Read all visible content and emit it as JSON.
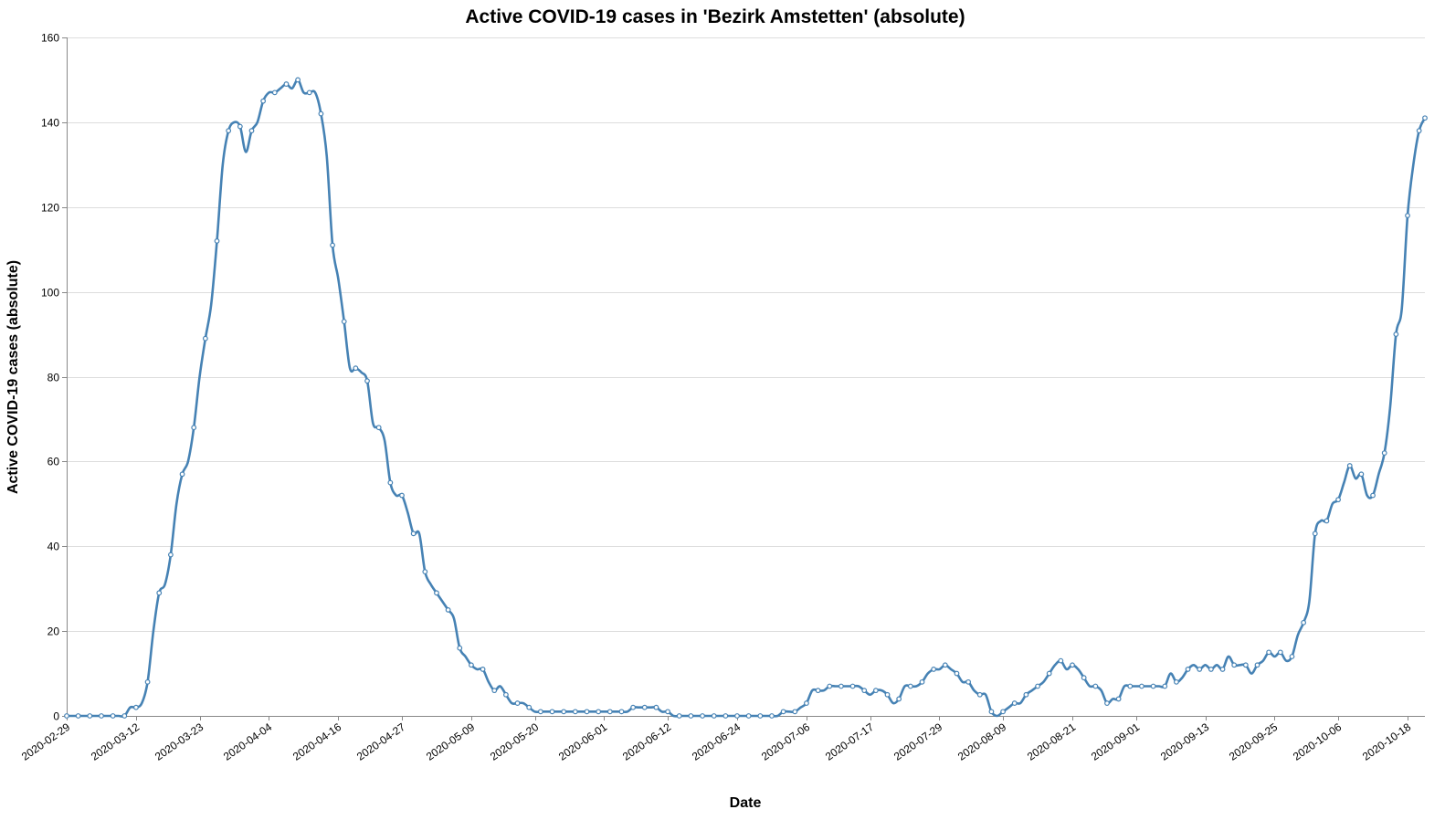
{
  "chart_data": {
    "type": "line",
    "title": "Active COVID-19 cases in 'Bezirk Amstetten' (absolute)",
    "xlabel": "Date",
    "ylabel": "Active COVID-19 cases (absolute)",
    "ylim": [
      0,
      160
    ],
    "yticks": [
      "0",
      "20",
      "40",
      "60",
      "80",
      "100",
      "120",
      "140",
      "160"
    ],
    "xlim": [
      "2020-02-29",
      "2020-10-21"
    ],
    "xticks": [
      "2020-02-29",
      "2020-03-12",
      "2020-03-23",
      "2020-04-04",
      "2020-04-16",
      "2020-04-27",
      "2020-05-09",
      "2020-05-20",
      "2020-06-01",
      "2020-06-12",
      "2020-06-24",
      "2020-07-06",
      "2020-07-17",
      "2020-07-29",
      "2020-08-09",
      "2020-08-21",
      "2020-09-01",
      "2020-09-13",
      "2020-09-25",
      "2020-10-06",
      "2020-10-18"
    ],
    "grid": true,
    "color": "#4682b4",
    "series": [
      {
        "points": [
          [
            "2020-02-29",
            0
          ],
          [
            "2020-03-01",
            0
          ],
          [
            "2020-03-02",
            0
          ],
          [
            "2020-03-03",
            0
          ],
          [
            "2020-03-04",
            0
          ],
          [
            "2020-03-05",
            0
          ],
          [
            "2020-03-06",
            0
          ],
          [
            "2020-03-07",
            0
          ],
          [
            "2020-03-08",
            0
          ],
          [
            "2020-03-09",
            0
          ],
          [
            "2020-03-10",
            0
          ],
          [
            "2020-03-11",
            2
          ],
          [
            "2020-03-12",
            2
          ],
          [
            "2020-03-13",
            3
          ],
          [
            "2020-03-14",
            8
          ],
          [
            "2020-03-15",
            20
          ],
          [
            "2020-03-16",
            29
          ],
          [
            "2020-03-17",
            31
          ],
          [
            "2020-03-18",
            38
          ],
          [
            "2020-03-19",
            50
          ],
          [
            "2020-03-20",
            57
          ],
          [
            "2020-03-21",
            60
          ],
          [
            "2020-03-22",
            68
          ],
          [
            "2020-03-23",
            80
          ],
          [
            "2020-03-24",
            89
          ],
          [
            "2020-03-25",
            97
          ],
          [
            "2020-03-26",
            112
          ],
          [
            "2020-03-27",
            130
          ],
          [
            "2020-03-28",
            138
          ],
          [
            "2020-03-29",
            140
          ],
          [
            "2020-03-30",
            139
          ],
          [
            "2020-03-31",
            133
          ],
          [
            "2020-04-01",
            138
          ],
          [
            "2020-04-02",
            140
          ],
          [
            "2020-04-03",
            145
          ],
          [
            "2020-04-04",
            147
          ],
          [
            "2020-04-05",
            147
          ],
          [
            "2020-04-06",
            148
          ],
          [
            "2020-04-07",
            149
          ],
          [
            "2020-04-08",
            148
          ],
          [
            "2020-04-09",
            150
          ],
          [
            "2020-04-10",
            147
          ],
          [
            "2020-04-11",
            147
          ],
          [
            "2020-04-12",
            147
          ],
          [
            "2020-04-13",
            142
          ],
          [
            "2020-04-14",
            132
          ],
          [
            "2020-04-15",
            111
          ],
          [
            "2020-04-16",
            103
          ],
          [
            "2020-04-17",
            93
          ],
          [
            "2020-04-18",
            82
          ],
          [
            "2020-04-19",
            82
          ],
          [
            "2020-04-20",
            81
          ],
          [
            "2020-04-21",
            79
          ],
          [
            "2020-04-22",
            69
          ],
          [
            "2020-04-23",
            68
          ],
          [
            "2020-04-24",
            65
          ],
          [
            "2020-04-25",
            55
          ],
          [
            "2020-04-26",
            52
          ],
          [
            "2020-04-27",
            52
          ],
          [
            "2020-04-28",
            48
          ],
          [
            "2020-04-29",
            43
          ],
          [
            "2020-04-30",
            43
          ],
          [
            "2020-05-01",
            34
          ],
          [
            "2020-05-02",
            31
          ],
          [
            "2020-05-03",
            29
          ],
          [
            "2020-05-04",
            27
          ],
          [
            "2020-05-05",
            25
          ],
          [
            "2020-05-06",
            23
          ],
          [
            "2020-05-07",
            16
          ],
          [
            "2020-05-08",
            14
          ],
          [
            "2020-05-09",
            12
          ],
          [
            "2020-05-10",
            11
          ],
          [
            "2020-05-11",
            11
          ],
          [
            "2020-05-12",
            8
          ],
          [
            "2020-05-13",
            6
          ],
          [
            "2020-05-14",
            7
          ],
          [
            "2020-05-15",
            5
          ],
          [
            "2020-05-16",
            3
          ],
          [
            "2020-05-17",
            3
          ],
          [
            "2020-05-18",
            3
          ],
          [
            "2020-05-19",
            2
          ],
          [
            "2020-05-20",
            1
          ],
          [
            "2020-05-21",
            1
          ],
          [
            "2020-05-22",
            1
          ],
          [
            "2020-05-23",
            1
          ],
          [
            "2020-05-24",
            1
          ],
          [
            "2020-05-25",
            1
          ],
          [
            "2020-05-26",
            1
          ],
          [
            "2020-05-27",
            1
          ],
          [
            "2020-05-28",
            1
          ],
          [
            "2020-05-29",
            1
          ],
          [
            "2020-05-30",
            1
          ],
          [
            "2020-05-31",
            1
          ],
          [
            "2020-06-01",
            1
          ],
          [
            "2020-06-02",
            1
          ],
          [
            "2020-06-03",
            1
          ],
          [
            "2020-06-04",
            1
          ],
          [
            "2020-06-05",
            1
          ],
          [
            "2020-06-06",
            2
          ],
          [
            "2020-06-07",
            2
          ],
          [
            "2020-06-08",
            2
          ],
          [
            "2020-06-09",
            2
          ],
          [
            "2020-06-10",
            2
          ],
          [
            "2020-06-11",
            1
          ],
          [
            "2020-06-12",
            1
          ],
          [
            "2020-06-13",
            0
          ],
          [
            "2020-06-14",
            0
          ],
          [
            "2020-06-15",
            0
          ],
          [
            "2020-06-16",
            0
          ],
          [
            "2020-06-17",
            0
          ],
          [
            "2020-06-18",
            0
          ],
          [
            "2020-06-19",
            0
          ],
          [
            "2020-06-20",
            0
          ],
          [
            "2020-06-21",
            0
          ],
          [
            "2020-06-22",
            0
          ],
          [
            "2020-06-23",
            0
          ],
          [
            "2020-06-24",
            0
          ],
          [
            "2020-06-25",
            0
          ],
          [
            "2020-06-26",
            0
          ],
          [
            "2020-06-27",
            0
          ],
          [
            "2020-06-28",
            0
          ],
          [
            "2020-06-29",
            0
          ],
          [
            "2020-06-30",
            0
          ],
          [
            "2020-07-01",
            0
          ],
          [
            "2020-07-02",
            1
          ],
          [
            "2020-07-03",
            1
          ],
          [
            "2020-07-04",
            1
          ],
          [
            "2020-07-05",
            2
          ],
          [
            "2020-07-06",
            3
          ],
          [
            "2020-07-07",
            6
          ],
          [
            "2020-07-08",
            6
          ],
          [
            "2020-07-09",
            6
          ],
          [
            "2020-07-10",
            7
          ],
          [
            "2020-07-11",
            7
          ],
          [
            "2020-07-12",
            7
          ],
          [
            "2020-07-13",
            7
          ],
          [
            "2020-07-14",
            7
          ],
          [
            "2020-07-15",
            7
          ],
          [
            "2020-07-16",
            6
          ],
          [
            "2020-07-17",
            5
          ],
          [
            "2020-07-18",
            6
          ],
          [
            "2020-07-19",
            6
          ],
          [
            "2020-07-20",
            5
          ],
          [
            "2020-07-21",
            3
          ],
          [
            "2020-07-22",
            4
          ],
          [
            "2020-07-23",
            7
          ],
          [
            "2020-07-24",
            7
          ],
          [
            "2020-07-25",
            7
          ],
          [
            "2020-07-26",
            8
          ],
          [
            "2020-07-27",
            10
          ],
          [
            "2020-07-28",
            11
          ],
          [
            "2020-07-29",
            11
          ],
          [
            "2020-07-30",
            12
          ],
          [
            "2020-07-31",
            11
          ],
          [
            "2020-08-01",
            10
          ],
          [
            "2020-08-02",
            8
          ],
          [
            "2020-08-03",
            8
          ],
          [
            "2020-08-04",
            6
          ],
          [
            "2020-08-05",
            5
          ],
          [
            "2020-08-06",
            5
          ],
          [
            "2020-08-07",
            1
          ],
          [
            "2020-08-08",
            0
          ],
          [
            "2020-08-09",
            1
          ],
          [
            "2020-08-10",
            2
          ],
          [
            "2020-08-11",
            3
          ],
          [
            "2020-08-12",
            3
          ],
          [
            "2020-08-13",
            5
          ],
          [
            "2020-08-14",
            6
          ],
          [
            "2020-08-15",
            7
          ],
          [
            "2020-08-16",
            8
          ],
          [
            "2020-08-17",
            10
          ],
          [
            "2020-08-18",
            12
          ],
          [
            "2020-08-19",
            13
          ],
          [
            "2020-08-20",
            11
          ],
          [
            "2020-08-21",
            12
          ],
          [
            "2020-08-22",
            11
          ],
          [
            "2020-08-23",
            9
          ],
          [
            "2020-08-24",
            7
          ],
          [
            "2020-08-25",
            7
          ],
          [
            "2020-08-26",
            6
          ],
          [
            "2020-08-27",
            3
          ],
          [
            "2020-08-28",
            4
          ],
          [
            "2020-08-29",
            4
          ],
          [
            "2020-08-30",
            7
          ],
          [
            "2020-08-31",
            7
          ],
          [
            "2020-09-01",
            7
          ],
          [
            "2020-09-02",
            7
          ],
          [
            "2020-09-03",
            7
          ],
          [
            "2020-09-04",
            7
          ],
          [
            "2020-09-05",
            7
          ],
          [
            "2020-09-06",
            7
          ],
          [
            "2020-09-07",
            10
          ],
          [
            "2020-09-08",
            8
          ],
          [
            "2020-09-09",
            9
          ],
          [
            "2020-09-10",
            11
          ],
          [
            "2020-09-11",
            12
          ],
          [
            "2020-09-12",
            11
          ],
          [
            "2020-09-13",
            12
          ],
          [
            "2020-09-14",
            11
          ],
          [
            "2020-09-15",
            12
          ],
          [
            "2020-09-16",
            11
          ],
          [
            "2020-09-17",
            14
          ],
          [
            "2020-09-18",
            12
          ],
          [
            "2020-09-19",
            12
          ],
          [
            "2020-09-20",
            12
          ],
          [
            "2020-09-21",
            10
          ],
          [
            "2020-09-22",
            12
          ],
          [
            "2020-09-23",
            13
          ],
          [
            "2020-09-24",
            15
          ],
          [
            "2020-09-25",
            14
          ],
          [
            "2020-09-26",
            15
          ],
          [
            "2020-09-27",
            13
          ],
          [
            "2020-09-28",
            14
          ],
          [
            "2020-09-29",
            19
          ],
          [
            "2020-09-30",
            22
          ],
          [
            "2020-10-01",
            27
          ],
          [
            "2020-10-02",
            43
          ],
          [
            "2020-10-03",
            46
          ],
          [
            "2020-10-04",
            46
          ],
          [
            "2020-10-05",
            50
          ],
          [
            "2020-10-06",
            51
          ],
          [
            "2020-10-07",
            55
          ],
          [
            "2020-10-08",
            59
          ],
          [
            "2020-10-09",
            56
          ],
          [
            "2020-10-10",
            57
          ],
          [
            "2020-10-11",
            52
          ],
          [
            "2020-10-12",
            52
          ],
          [
            "2020-10-13",
            57
          ],
          [
            "2020-10-14",
            62
          ],
          [
            "2020-10-15",
            73
          ],
          [
            "2020-10-16",
            90
          ],
          [
            "2020-10-17",
            96
          ],
          [
            "2020-10-18",
            118
          ],
          [
            "2020-10-19",
            130
          ],
          [
            "2020-10-20",
            138
          ],
          [
            "2020-10-21",
            141
          ]
        ]
      }
    ]
  }
}
